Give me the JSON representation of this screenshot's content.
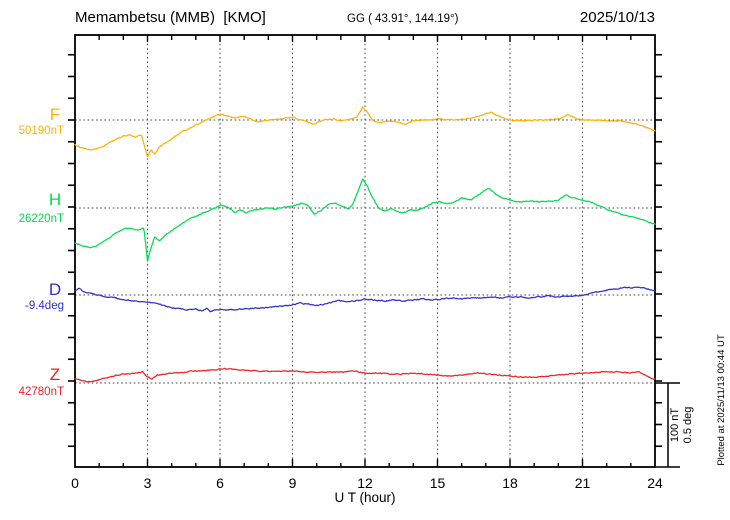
{
  "header": {
    "title": "Memambetsu (MMB)  [KMO]",
    "coords": "GG ( 43.91°, 144.19°)",
    "date": "2025/10/13"
  },
  "scale_bar": {
    "line1": "100 nT",
    "line2": "0.5 deg"
  },
  "footer": {
    "plotted_at": "Plotted at 2025/11/13 00:44 UT"
  },
  "chart_data": {
    "type": "line",
    "title": "Memambetsu (MMB) [KMO] magnetogram for 2025/10/13",
    "xlabel": "U T (hour)",
    "x_range": [
      0,
      24
    ],
    "x_tick_labels": [
      "0",
      "3",
      "6",
      "9",
      "12",
      "15",
      "18",
      "21",
      "24"
    ],
    "x_major_tick_hours": 3,
    "x_minor_tick_hours": 1,
    "grid": "dotted vertical every 3 h; dotted horizontal baseline per component",
    "scale_per_division": {
      "nT": 100,
      "deg": 0.5
    },
    "legend_position": "left margin (component letter + baseline value)",
    "series": [
      {
        "name": "F",
        "unit": "nT",
        "baseline_value": 50190,
        "baseline_label": "50190nT",
        "color": "#FFAF0A",
        "points": [
          [
            0,
            -28.7
          ],
          [
            0.3,
            -32.2
          ],
          [
            0.7,
            -34.5
          ],
          [
            1.2,
            -29.9
          ],
          [
            1.7,
            -21.8
          ],
          [
            2.0,
            -18.4
          ],
          [
            2.3,
            -17.2
          ],
          [
            2.5,
            -19.5
          ],
          [
            2.75,
            -17.2
          ],
          [
            3.0,
            -42.5
          ],
          [
            3.15,
            -34.5
          ],
          [
            3.3,
            -39.1
          ],
          [
            3.5,
            -31.0
          ],
          [
            3.8,
            -25.3
          ],
          [
            4.1,
            -19.5
          ],
          [
            4.5,
            -12.6
          ],
          [
            5.0,
            -5.7
          ],
          [
            5.5,
            1.1
          ],
          [
            6.0,
            6.9
          ],
          [
            6.3,
            4.6
          ],
          [
            6.6,
            2.3
          ],
          [
            7.0,
            4.6
          ],
          [
            7.35,
            0
          ],
          [
            7.6,
            -2.3
          ],
          [
            8.0,
            0
          ],
          [
            8.5,
            1.1
          ],
          [
            9.0,
            3.4
          ],
          [
            9.5,
            -1.1
          ],
          [
            9.9,
            -4.6
          ],
          [
            10.3,
            0
          ],
          [
            10.7,
            1.1
          ],
          [
            11.0,
            -1.1
          ],
          [
            11.4,
            1.1
          ],
          [
            11.65,
            3.4
          ],
          [
            11.9,
            14.9
          ],
          [
            12.1,
            9.2
          ],
          [
            12.35,
            -1.1
          ],
          [
            12.6,
            -3.4
          ],
          [
            13.0,
            -1.1
          ],
          [
            13.3,
            -2.3
          ],
          [
            13.65,
            -4.6
          ],
          [
            14.0,
            -1.1
          ],
          [
            14.5,
            0
          ],
          [
            15.0,
            1.1
          ],
          [
            15.5,
            0
          ],
          [
            16.0,
            1.1
          ],
          [
            16.5,
            2.3
          ],
          [
            17.0,
            6.9
          ],
          [
            17.2,
            9.2
          ],
          [
            17.5,
            4.6
          ],
          [
            18.0,
            0
          ],
          [
            18.5,
            -1.1
          ],
          [
            19.0,
            0
          ],
          [
            19.5,
            0
          ],
          [
            20.0,
            1.1
          ],
          [
            20.4,
            5.7
          ],
          [
            20.8,
            1.1
          ],
          [
            21.2,
            0
          ],
          [
            21.7,
            0
          ],
          [
            22.1,
            -1.1
          ],
          [
            22.6,
            -1.1
          ],
          [
            23.0,
            -3.4
          ],
          [
            23.4,
            -5.7
          ],
          [
            23.7,
            -9.2
          ],
          [
            24,
            -12.6
          ]
        ]
      },
      {
        "name": "H",
        "unit": "nT",
        "baseline_value": 26220,
        "baseline_label": "26220nT",
        "color": "#00DC50",
        "points": [
          [
            0,
            -40.2
          ],
          [
            0.3,
            -43.7
          ],
          [
            0.7,
            -46.0
          ],
          [
            1.0,
            -41.4
          ],
          [
            1.35,
            -35.6
          ],
          [
            1.7,
            -28.7
          ],
          [
            2.0,
            -24.1
          ],
          [
            2.3,
            -23.0
          ],
          [
            2.6,
            -25.3
          ],
          [
            2.85,
            -23.0
          ],
          [
            3.0,
            -60.9
          ],
          [
            3.15,
            -46.0
          ],
          [
            3.3,
            -33.3
          ],
          [
            3.5,
            -37.9
          ],
          [
            3.8,
            -29.9
          ],
          [
            4.1,
            -24.1
          ],
          [
            4.4,
            -18.4
          ],
          [
            4.7,
            -12.6
          ],
          [
            5.0,
            -9.2
          ],
          [
            5.4,
            -4.6
          ],
          [
            5.8,
            0
          ],
          [
            6.05,
            3.4
          ],
          [
            6.3,
            1.1
          ],
          [
            6.6,
            -4.6
          ],
          [
            6.85,
            -2.3
          ],
          [
            7.1,
            -5.7
          ],
          [
            7.4,
            -2.3
          ],
          [
            7.7,
            -1.1
          ],
          [
            8.0,
            0
          ],
          [
            8.3,
            -1.1
          ],
          [
            8.65,
            1.1
          ],
          [
            9.0,
            2.3
          ],
          [
            9.4,
            5.7
          ],
          [
            9.65,
            2.3
          ],
          [
            9.9,
            -6.9
          ],
          [
            10.2,
            -2.3
          ],
          [
            10.5,
            4.6
          ],
          [
            10.8,
            5.7
          ],
          [
            11.05,
            2.3
          ],
          [
            11.3,
            -1.1
          ],
          [
            11.5,
            4.6
          ],
          [
            11.7,
            18.4
          ],
          [
            11.9,
            33.3
          ],
          [
            12.05,
            27.6
          ],
          [
            12.3,
            12.6
          ],
          [
            12.55,
            0
          ],
          [
            12.8,
            -3.4
          ],
          [
            13.05,
            -1.1
          ],
          [
            13.3,
            -3.4
          ],
          [
            13.6,
            -5.7
          ],
          [
            13.9,
            -2.3
          ],
          [
            14.2,
            -2.3
          ],
          [
            14.5,
            1.1
          ],
          [
            14.8,
            5.7
          ],
          [
            15.1,
            6.9
          ],
          [
            15.35,
            4.6
          ],
          [
            15.6,
            5.7
          ],
          [
            16.0,
            11.5
          ],
          [
            16.4,
            9.2
          ],
          [
            16.8,
            17.2
          ],
          [
            17.1,
            23.0
          ],
          [
            17.4,
            16.1
          ],
          [
            17.7,
            11.5
          ],
          [
            18.0,
            9.2
          ],
          [
            18.4,
            6.9
          ],
          [
            18.8,
            8.0
          ],
          [
            19.2,
            6.9
          ],
          [
            19.6,
            8.0
          ],
          [
            20.0,
            9.2
          ],
          [
            20.3,
            14.9
          ],
          [
            20.6,
            11.5
          ],
          [
            21.0,
            9.2
          ],
          [
            21.4,
            5.7
          ],
          [
            21.9,
            0
          ],
          [
            22.3,
            -4.6
          ],
          [
            22.7,
            -8.0
          ],
          [
            23.1,
            -10.3
          ],
          [
            23.5,
            -13.8
          ],
          [
            24,
            -18.4
          ]
        ]
      },
      {
        "name": "D",
        "unit": "deg",
        "baseline_value": -9.4,
        "baseline_label": "-9.4deg",
        "color": "#3030CC",
        "points": [
          [
            0,
            0.023
          ],
          [
            0.15,
            0.04
          ],
          [
            0.35,
            0.017
          ],
          [
            0.6,
            0.011
          ],
          [
            0.9,
            0.0
          ],
          [
            1.3,
            -0.011
          ],
          [
            1.7,
            -0.017
          ],
          [
            2.1,
            -0.029
          ],
          [
            2.5,
            -0.034
          ],
          [
            2.9,
            -0.04
          ],
          [
            3.3,
            -0.046
          ],
          [
            3.6,
            -0.057
          ],
          [
            4.0,
            -0.075
          ],
          [
            4.4,
            -0.08
          ],
          [
            4.7,
            -0.086
          ],
          [
            5.0,
            -0.08
          ],
          [
            5.25,
            -0.092
          ],
          [
            5.45,
            -0.075
          ],
          [
            5.6,
            -0.098
          ],
          [
            5.8,
            -0.086
          ],
          [
            6.2,
            -0.086
          ],
          [
            6.6,
            -0.086
          ],
          [
            7.0,
            -0.08
          ],
          [
            7.4,
            -0.075
          ],
          [
            7.8,
            -0.075
          ],
          [
            8.2,
            -0.069
          ],
          [
            8.6,
            -0.063
          ],
          [
            9.0,
            -0.057
          ],
          [
            9.3,
            -0.046
          ],
          [
            9.6,
            -0.052
          ],
          [
            10.0,
            -0.057
          ],
          [
            10.4,
            -0.052
          ],
          [
            10.9,
            -0.029
          ],
          [
            11.2,
            -0.04
          ],
          [
            11.6,
            -0.034
          ],
          [
            12.0,
            -0.023
          ],
          [
            12.4,
            -0.029
          ],
          [
            12.8,
            -0.034
          ],
          [
            13.2,
            -0.029
          ],
          [
            13.6,
            -0.034
          ],
          [
            14.0,
            -0.029
          ],
          [
            14.4,
            -0.023
          ],
          [
            14.8,
            -0.029
          ],
          [
            15.2,
            -0.023
          ],
          [
            15.6,
            -0.017
          ],
          [
            16.0,
            -0.023
          ],
          [
            16.4,
            -0.017
          ],
          [
            16.8,
            -0.017
          ],
          [
            17.2,
            -0.011
          ],
          [
            17.6,
            -0.017
          ],
          [
            18.0,
            -0.011
          ],
          [
            18.4,
            -0.011
          ],
          [
            18.8,
            -0.017
          ],
          [
            19.2,
            -0.011
          ],
          [
            19.6,
            -0.006
          ],
          [
            20.0,
            -0.011
          ],
          [
            20.4,
            -0.006
          ],
          [
            20.8,
            -0.006
          ],
          [
            21.2,
            0.006
          ],
          [
            21.6,
            0.017
          ],
          [
            22.0,
            0.029
          ],
          [
            22.4,
            0.034
          ],
          [
            22.7,
            0.046
          ],
          [
            23.0,
            0.04
          ],
          [
            23.3,
            0.046
          ],
          [
            23.6,
            0.04
          ],
          [
            24,
            0.023
          ]
        ]
      },
      {
        "name": "Z",
        "unit": "nT",
        "baseline_value": 42780,
        "baseline_label": "42780nT",
        "color": "#EE2222",
        "points": [
          [
            0,
            5.7
          ],
          [
            0.3,
            2.3
          ],
          [
            0.55,
            1.1
          ],
          [
            0.8,
            2.3
          ],
          [
            1.2,
            5.7
          ],
          [
            1.6,
            8.0
          ],
          [
            2.0,
            10.3
          ],
          [
            2.4,
            11.5
          ],
          [
            2.8,
            12.6
          ],
          [
            3.0,
            6.9
          ],
          [
            3.2,
            4.6
          ],
          [
            3.4,
            9.2
          ],
          [
            3.7,
            10.3
          ],
          [
            4.0,
            11.5
          ],
          [
            4.5,
            12.6
          ],
          [
            5.0,
            13.8
          ],
          [
            5.5,
            14.9
          ],
          [
            6.0,
            16.1
          ],
          [
            6.5,
            16.1
          ],
          [
            7.0,
            14.9
          ],
          [
            7.5,
            13.8
          ],
          [
            8.0,
            13.8
          ],
          [
            8.5,
            13.8
          ],
          [
            9.0,
            13.8
          ],
          [
            9.5,
            12.6
          ],
          [
            10.0,
            12.6
          ],
          [
            10.5,
            12.6
          ],
          [
            11.0,
            12.6
          ],
          [
            11.5,
            13.8
          ],
          [
            12.0,
            11.5
          ],
          [
            12.5,
            11.5
          ],
          [
            13.0,
            10.3
          ],
          [
            13.5,
            10.3
          ],
          [
            14.0,
            11.5
          ],
          [
            14.5,
            10.3
          ],
          [
            15.0,
            9.2
          ],
          [
            15.5,
            8.0
          ],
          [
            16.0,
            9.2
          ],
          [
            16.7,
            11.5
          ],
          [
            17.1,
            10.3
          ],
          [
            17.5,
            9.2
          ],
          [
            18.0,
            8.0
          ],
          [
            18.5,
            6.9
          ],
          [
            19.0,
            6.9
          ],
          [
            19.5,
            8.0
          ],
          [
            20.0,
            9.2
          ],
          [
            20.5,
            10.3
          ],
          [
            21.0,
            11.5
          ],
          [
            21.5,
            12.6
          ],
          [
            22.0,
            12.6
          ],
          [
            22.5,
            12.6
          ],
          [
            23.0,
            11.5
          ],
          [
            23.3,
            12.6
          ],
          [
            23.6,
            9.2
          ],
          [
            23.8,
            5.7
          ],
          [
            24,
            4.6
          ]
        ]
      }
    ]
  }
}
